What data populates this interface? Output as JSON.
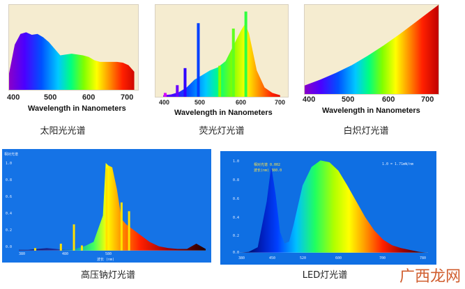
{
  "spectra": {
    "sunlight": {
      "caption": "太阳光光谱",
      "xlabel": "Wavelength in Nanometers",
      "ticks": [
        "400",
        "500",
        "600",
        "700"
      ],
      "chart_data": {
        "type": "area",
        "xlabel": "Wavelength in Nanometers",
        "xlim": [
          380,
          720
        ],
        "x": [
          380,
          395,
          410,
          425,
          440,
          455,
          470,
          485,
          500,
          515,
          530,
          545,
          560,
          575,
          590,
          605,
          620,
          635,
          650,
          665,
          680,
          695,
          710
        ],
        "values": [
          0.2,
          0.55,
          0.68,
          0.7,
          0.67,
          0.68,
          0.64,
          0.58,
          0.5,
          0.42,
          0.43,
          0.44,
          0.43,
          0.42,
          0.4,
          0.36,
          0.34,
          0.34,
          0.34,
          0.34,
          0.33,
          0.3,
          0.22
        ]
      }
    },
    "fluorescent": {
      "caption": "荧光灯光谱",
      "xlabel": "Wavelength in Nanometers",
      "ticks": [
        "400",
        "500",
        "600",
        "700"
      ],
      "chart_data": {
        "type": "area",
        "xlabel": "Wavelength in Nanometers",
        "xlim": [
          380,
          720
        ],
        "x": [
          400,
          420,
          440,
          460,
          480,
          500,
          520,
          540,
          560,
          580,
          600,
          610,
          620,
          640,
          660,
          680,
          700
        ],
        "values": [
          0.02,
          0.03,
          0.06,
          0.12,
          0.22,
          0.28,
          0.34,
          0.38,
          0.46,
          0.66,
          0.86,
          0.94,
          0.82,
          0.34,
          0.12,
          0.05,
          0.02
        ],
        "peaks": [
          {
            "x": 405,
            "value": 0.05,
            "color": "#d400ff"
          },
          {
            "x": 436,
            "value": 0.15,
            "color": "#6a00ff"
          },
          {
            "x": 456,
            "value": 0.37,
            "color": "#3000ff"
          },
          {
            "x": 490,
            "value": 0.95,
            "color": "#0040ff"
          },
          {
            "x": 545,
            "value": 0.4,
            "color": "#80ff00"
          },
          {
            "x": 580,
            "value": 0.88,
            "color": "#60ff20"
          },
          {
            "x": 612,
            "value": 1.1,
            "color": "#30ff40"
          }
        ]
      }
    },
    "incandescent": {
      "caption": "白炽灯光谱",
      "xlabel": "Wavelength in Nanometers",
      "ticks": [
        "400",
        "500",
        "600",
        "700"
      ],
      "chart_data": {
        "type": "area",
        "xlabel": "Wavelength in Nanometers",
        "xlim": [
          380,
          720
        ],
        "x": [
          380,
          420,
          460,
          500,
          540,
          580,
          620,
          660,
          700,
          720
        ],
        "values": [
          0.1,
          0.17,
          0.25,
          0.34,
          0.45,
          0.57,
          0.7,
          0.84,
          0.98,
          1.05
        ]
      }
    },
    "sodium": {
      "caption": "高压钠灯光谱",
      "ylabel": "相对光谱",
      "xlabel": "波长 (nm)",
      "yticks": [
        "1.0",
        "0.8",
        "0.6",
        "0.4",
        "0.2",
        "0.0"
      ],
      "xticks": [
        "380",
        "480",
        "580"
      ],
      "chart_data": {
        "type": "area",
        "xlim": [
          380,
          780
        ],
        "ylim": [
          0,
          1.0
        ],
        "x": [
          380,
          400,
          420,
          440,
          460,
          480,
          500,
          520,
          540,
          560,
          566,
          572,
          580,
          590,
          600,
          610,
          620,
          640,
          660,
          680,
          700,
          720,
          740,
          760,
          780
        ],
        "values": [
          0.01,
          0.01,
          0.02,
          0.03,
          0.02,
          0.01,
          0.02,
          0.05,
          0.1,
          0.4,
          1.0,
          0.97,
          0.95,
          0.7,
          0.36,
          0.3,
          0.26,
          0.18,
          0.1,
          0.05,
          0.03,
          0.02,
          0.02,
          0.08,
          0.02
        ],
        "peaks": [
          {
            "x": 415,
            "value": 0.03
          },
          {
            "x": 470,
            "value": 0.08
          },
          {
            "x": 498,
            "value": 0.3
          },
          {
            "x": 515,
            "value": 0.06
          },
          {
            "x": 568,
            "value": 0.94
          },
          {
            "x": 600,
            "value": 0.55
          },
          {
            "x": 616,
            "value": 0.45
          }
        ]
      }
    },
    "led": {
      "caption": "LED灯光谱",
      "legend_a": "相对光谱  0.002",
      "legend_b": "波长(nm) 380.0",
      "legend_c": "1.0 = 1.71mW/nm",
      "yticks": [
        "1.0",
        "0.8",
        "0.6",
        "0.4",
        "0.2",
        "0.0"
      ],
      "xticks": [
        "380",
        "450",
        "520",
        "600",
        "700",
        "780"
      ],
      "chart_data": {
        "type": "area",
        "xlim": [
          380,
          800
        ],
        "ylim": [
          0,
          1.0
        ],
        "x": [
          380,
          400,
          420,
          440,
          450,
          460,
          470,
          480,
          490,
          500,
          520,
          540,
          560,
          580,
          600,
          620,
          640,
          660,
          680,
          700,
          720,
          740,
          760,
          780,
          800
        ],
        "values": [
          0.0,
          0.01,
          0.06,
          0.55,
          0.93,
          0.62,
          0.22,
          0.1,
          0.12,
          0.3,
          0.72,
          0.92,
          0.99,
          0.97,
          0.88,
          0.72,
          0.55,
          0.38,
          0.24,
          0.14,
          0.08,
          0.05,
          0.03,
          0.01,
          0.0
        ]
      }
    }
  },
  "watermark": "广西龙网"
}
